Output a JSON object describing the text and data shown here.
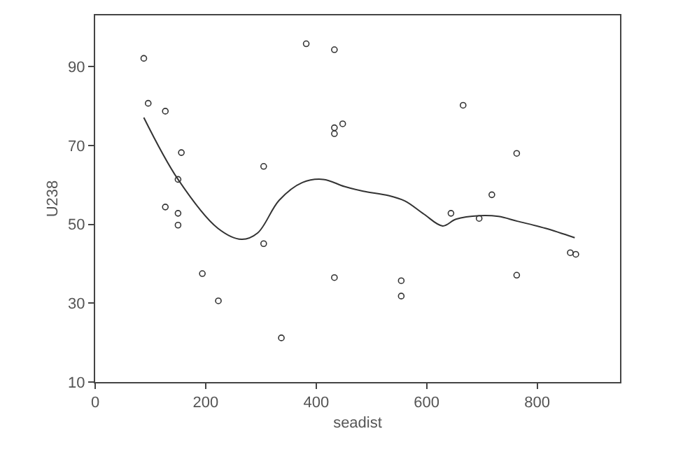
{
  "chart_data": {
    "type": "scatter",
    "xlabel": "seadist",
    "ylabel": "U238",
    "xlim": [
      0,
      950
    ],
    "ylim": [
      10,
      103
    ],
    "xticks": [
      0,
      200,
      400,
      600,
      800
    ],
    "yticks": [
      10,
      30,
      50,
      70,
      90
    ],
    "series": [
      {
        "marker": "circle",
        "color": "#333333",
        "x": [
          88,
          96,
          127,
          156,
          150,
          127,
          150,
          150,
          194,
          223,
          305,
          305,
          337,
          382,
          433,
          433,
          433,
          448,
          433,
          666,
          763,
          718,
          644,
          695,
          554,
          554,
          763,
          860,
          870
        ],
        "values": [
          92.1,
          80.7,
          78.7,
          68.2,
          61.4,
          54.4,
          52.8,
          49.8,
          37.5,
          30.6,
          64.7,
          45.1,
          21.2,
          95.8,
          94.3,
          74.5,
          73.0,
          75.5,
          36.5,
          80.2,
          68.0,
          57.5,
          52.8,
          51.5,
          35.7,
          31.8,
          37.1,
          42.8,
          42.4
        ]
      },
      {
        "type": "line",
        "color": "#333333",
        "line_style": "solid",
        "x": [
          88,
          150,
          222,
          265,
          294,
          333,
          375,
          413,
          451,
          485,
          531,
          561,
          595,
          629,
          653,
          696,
          730,
          764,
          815,
          868
        ],
        "values": [
          77.1,
          61.4,
          49.0,
          46.2,
          47.8,
          56.1,
          60.6,
          61.4,
          59.6,
          58.4,
          57.3,
          55.9,
          52.6,
          49.6,
          51.3,
          52.2,
          52.0,
          50.8,
          49.0,
          46.6
        ]
      }
    ]
  }
}
